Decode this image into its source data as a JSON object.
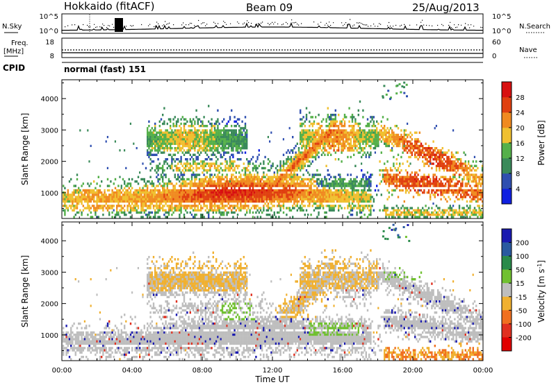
{
  "header": {
    "station": "Hokkaido (fitACF)",
    "beam": "Beam 09",
    "date": "25/Aug/2013"
  },
  "strip1": {
    "left_label": "N.Sky",
    "right_label": "N.Search",
    "left_ticks": [
      "10^5",
      "10^0"
    ],
    "right_ticks": [
      "10^5",
      "10^0"
    ]
  },
  "strip2": {
    "left_label": "Freq.",
    "left_unit": "[MHz]",
    "right_label": "Nave",
    "left_ticks": [
      "18",
      "8"
    ],
    "right_ticks": [
      "60",
      "0"
    ]
  },
  "cpid": {
    "label": "CPID",
    "value": "normal (fast) 151"
  },
  "chart_data": [
    {
      "type": "heatmap",
      "ylabel": "Slant Range [km]",
      "x_ticks": [
        "00:00",
        "04:00",
        "08:00",
        "12:00",
        "16:00",
        "20:00",
        "00:00"
      ],
      "y_ticks": [
        1000,
        2000,
        3000,
        4000
      ],
      "ylim": [
        180,
        4600
      ],
      "colorbar": {
        "label": "Power [dB]",
        "ticks": [
          "4",
          "8",
          "12",
          "16",
          "20",
          "24",
          "28"
        ],
        "colors": [
          "#1020e0",
          "#2f4fb0",
          "#3a8a5a",
          "#55b04a",
          "#f0c030",
          "#f08a20",
          "#e04010",
          "#d81010"
        ]
      }
    },
    {
      "type": "heatmap",
      "ylabel": "Slant Range [km]",
      "xlabel": "Time UT",
      "x_ticks": [
        "00:00",
        "04:00",
        "08:00",
        "12:00",
        "16:00",
        "20:00",
        "00:00"
      ],
      "y_ticks": [
        1000,
        2000,
        3000,
        4000
      ],
      "ylim": [
        180,
        4600
      ],
      "colorbar": {
        "label": "Velocity [m s",
        "label_sup": "-1",
        "label_end": "]",
        "ticks": [
          "200",
          "100",
          "50",
          "15",
          "-15",
          "-50",
          "-100",
          "-200"
        ],
        "colors": [
          "#1a1ab0",
          "#2a5aa0",
          "#2a8a4a",
          "#70c030",
          "#bebebe",
          "#f0b030",
          "#f07020",
          "#e03020",
          "#e00000"
        ]
      }
    }
  ]
}
